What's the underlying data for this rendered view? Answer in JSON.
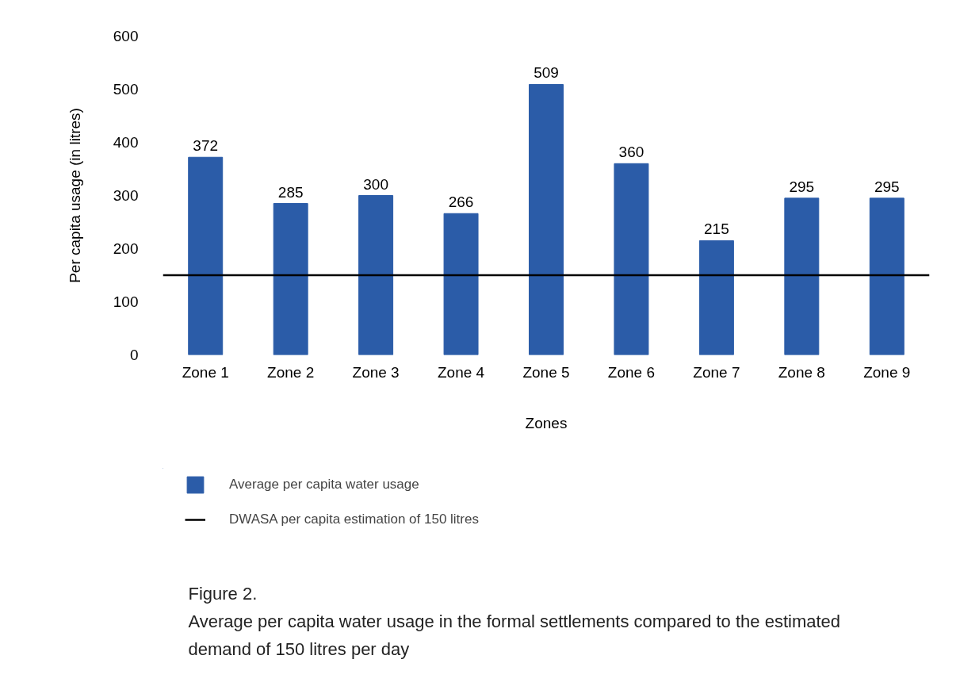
{
  "chart_data": {
    "type": "bar",
    "xlabel": "Zones",
    "ylabel": "Per capita usage (in litres)",
    "categories": [
      "Zone 1",
      "Zone 2",
      "Zone 3",
      "Zone 4",
      "Zone 5",
      "Zone 6",
      "Zone 7",
      "Zone 8",
      "Zone 9"
    ],
    "series": [
      {
        "name": "Average per capita water usage",
        "color": "#2b5ca8",
        "values": [
          372,
          285,
          300,
          266,
          509,
          360,
          215,
          295,
          295
        ]
      }
    ],
    "ylim": [
      0,
      600
    ],
    "yticks": [
      0,
      100,
      200,
      300,
      400,
      500,
      600
    ],
    "grid": false,
    "data_labels": true,
    "legend": "bottom",
    "ref_lines": [
      {
        "axis": "y",
        "value": 150,
        "label": "DWASA per capita estimation of 150 litres",
        "color": "#000000",
        "line_style": "solid"
      }
    ],
    "annotations": [
      "Figure 2.",
      "Average per capita water usage in the formal settlements compared to the estimated demand of 150 litres per day"
    ]
  }
}
